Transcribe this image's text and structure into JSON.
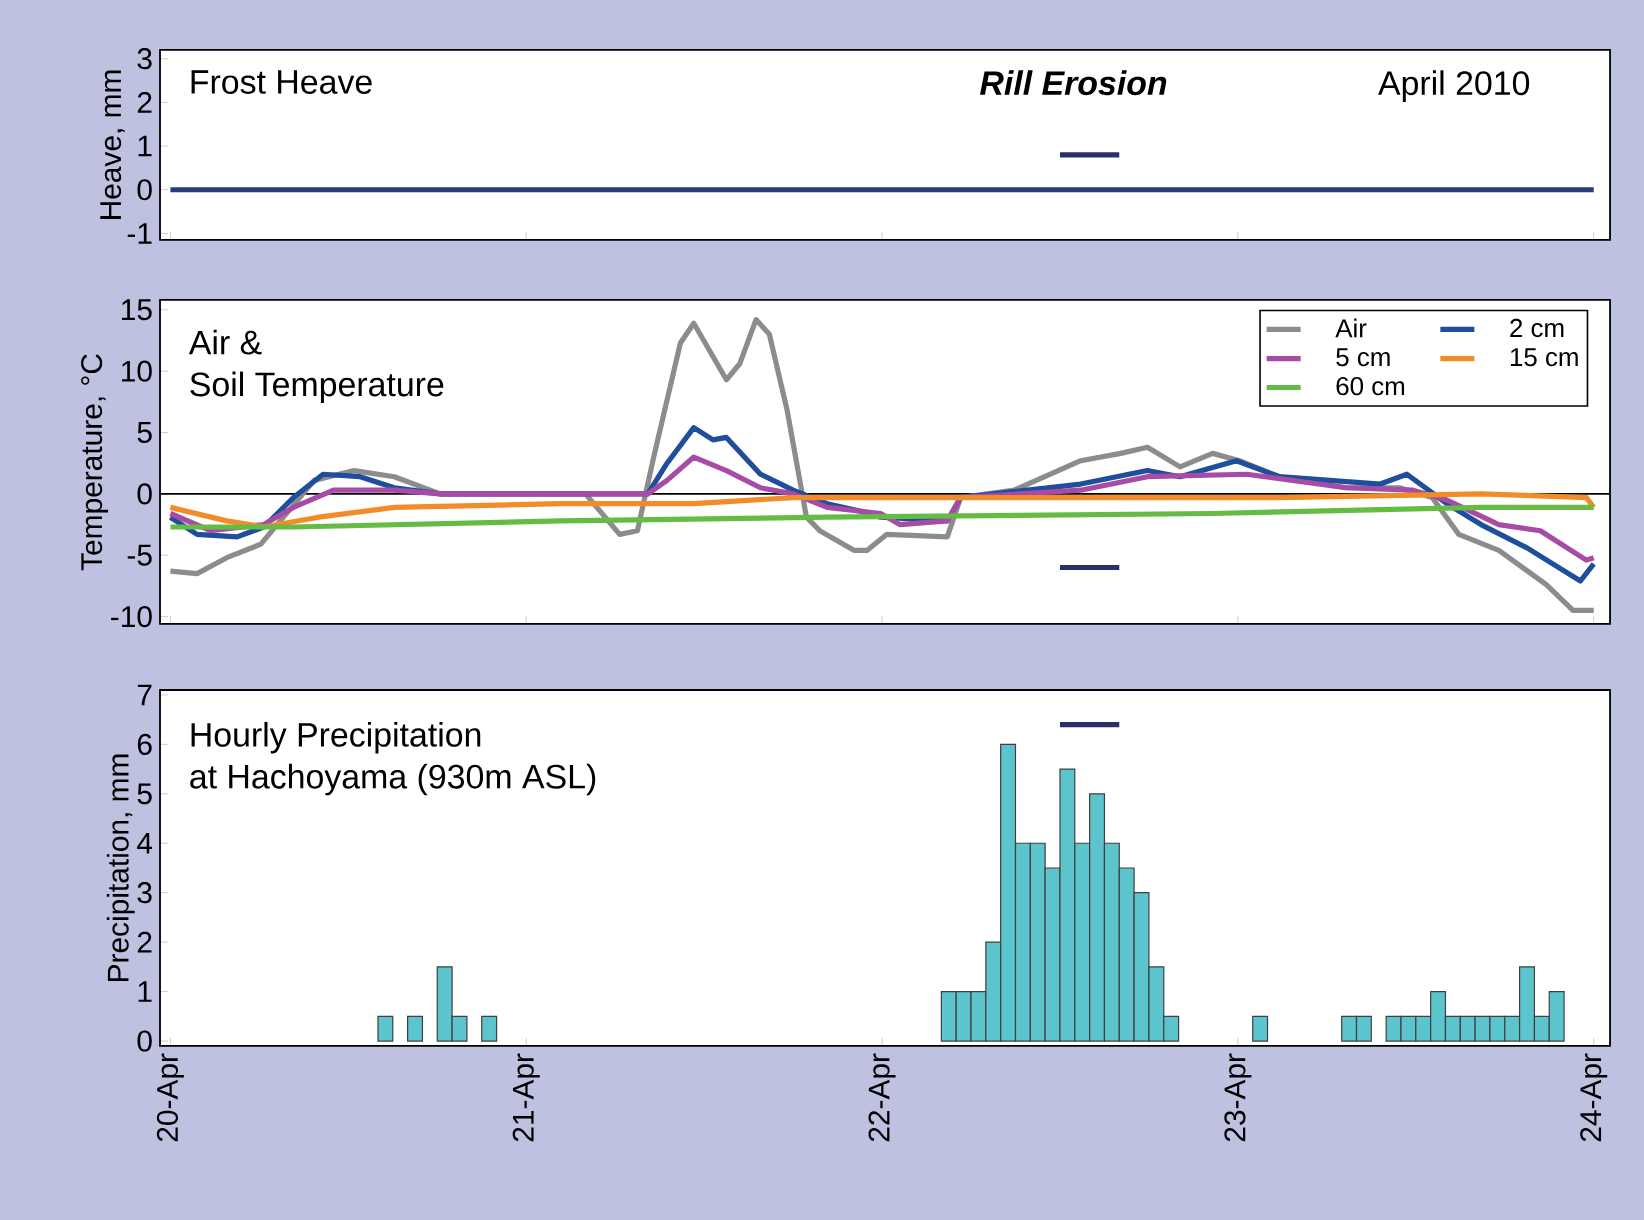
{
  "chart_data": [
    {
      "type": "line",
      "title": "Frost Heave",
      "ylabel": "Heave, mm",
      "xlim": [
        "2010-04-19T23:18",
        "2010-04-24T01:06"
      ],
      "ylim": [
        -1.15,
        3.2
      ],
      "yticks": [
        -1,
        0,
        1,
        2,
        3
      ],
      "xticks": [
        {
          "value": "2010-04-20",
          "label": null
        },
        {
          "value": "2010-04-21",
          "label": null
        },
        {
          "value": "2010-04-22",
          "label": null
        },
        {
          "value": "2010-04-23",
          "label": null
        },
        {
          "value": "2010-04-24",
          "label": null
        }
      ],
      "tick_labels": "y",
      "annotations": [
        "Rill Erosion",
        "April 2010"
      ],
      "series": [
        {
          "color": "#2b3a7a",
          "x": [
            "2010-04-20T00:00",
            "2010-04-21T00:00",
            "2010-04-22T00:00",
            "2010-04-23T00:00",
            "2010-04-24T00:00"
          ],
          "values": [
            0,
            0,
            0,
            0,
            0
          ]
        },
        {
          "color": "#2b2f6e",
          "x": [
            "2010-04-22T12:00",
            "2010-04-22T16:00"
          ],
          "values": [
            0.8,
            0.8
          ]
        }
      ]
    },
    {
      "type": "line",
      "title": "Air &",
      "subtitle": "Soil Temperature",
      "ylabel": "Temperature, °C",
      "xlim": [
        "2010-04-19T23:18",
        "2010-04-24T01:06"
      ],
      "ylim": [
        -10.6,
        15.8
      ],
      "yticks": [
        -10,
        -5,
        0,
        5,
        10,
        15
      ],
      "xticks": [
        {
          "value": "2010-04-20",
          "label": null
        },
        {
          "value": "2010-04-21",
          "label": null
        },
        {
          "value": "2010-04-22",
          "label": null
        },
        {
          "value": "2010-04-23",
          "label": null
        },
        {
          "value": "2010-04-24",
          "label": null
        }
      ],
      "tick_labels": "y",
      "legend": "top right",
      "ref_lines": [
        {
          "axis": "y",
          "value": 0,
          "color": "#000000"
        }
      ],
      "series": [
        {
          "name": "Air",
          "color": "#8c8c8c",
          "x": [
            "2010-04-20T00:00",
            "2010-04-20T01:48",
            "2010-04-20T03:48",
            "2010-04-20T06:06",
            "2010-04-20T07:12",
            "2010-04-20T09:42",
            "2010-04-20T12:24",
            "2010-04-20T15:06",
            "2010-04-20T18:12",
            "2010-04-21T04:00",
            "2010-04-21T06:18",
            "2010-04-21T07:30",
            "2010-04-21T08:36",
            "2010-04-21T10:24",
            "2010-04-21T11:18",
            "2010-04-21T13:30",
            "2010-04-21T14:24",
            "2010-04-21T15:30",
            "2010-04-21T16:24",
            "2010-04-21T17:36",
            "2010-04-21T18:54",
            "2010-04-21T19:48",
            "2010-04-21T22:06",
            "2010-04-21T23:00",
            "2010-04-22T00:18",
            "2010-04-22T04:24",
            "2010-04-22T05:18",
            "2010-04-22T08:54",
            "2010-04-22T13:24",
            "2010-04-22T16:06",
            "2010-04-22T17:54",
            "2010-04-22T20:06",
            "2010-04-22T22:18",
            "2010-04-23T00:06",
            "2010-04-23T02:48",
            "2010-04-23T07:18",
            "2010-04-23T10:54",
            "2010-04-23T13:06",
            "2010-04-23T14:54",
            "2010-04-23T17:36",
            "2010-04-23T20:48",
            "2010-04-23T22:36",
            "2010-04-24T00:00"
          ],
          "values": [
            -6.3,
            -6.5,
            -5.2,
            -4.1,
            -2.5,
            1.1,
            1.9,
            1.4,
            0,
            0,
            -3.3,
            -3,
            3,
            12.3,
            13.9,
            9.3,
            10.6,
            14.2,
            13,
            6.8,
            -1.9,
            -3,
            -4.6,
            -4.6,
            -3.3,
            -3.5,
            -0.3,
            0.3,
            2.7,
            3.3,
            3.8,
            2.2,
            3.3,
            2.7,
            1.4,
            0.5,
            0.5,
            -0.3,
            -3.3,
            -4.6,
            -7.4,
            -9.5,
            -9.5
          ]
        },
        {
          "name": "2 cm",
          "color": "#1f4e9c",
          "x": [
            "2010-04-20T00:00",
            "2010-04-20T01:48",
            "2010-04-20T04:30",
            "2010-04-20T06:18",
            "2010-04-20T08:18",
            "2010-04-20T10:18",
            "2010-04-20T12:48",
            "2010-04-20T15:06",
            "2010-04-20T18:12",
            "2010-04-21T08:12",
            "2010-04-21T09:30",
            "2010-04-21T11:18",
            "2010-04-21T12:36",
            "2010-04-21T13:30",
            "2010-04-21T15:48",
            "2010-04-21T18:00",
            "2010-04-21T20:18",
            "2010-04-21T22:30",
            "2010-04-21T23:54",
            "2010-04-22T04:24",
            "2010-04-22T05:18",
            "2010-04-22T13:24",
            "2010-04-22T17:54",
            "2010-04-22T20:06",
            "2010-04-22T23:54",
            "2010-04-23T02:48",
            "2010-04-23T09:36",
            "2010-04-23T11:24",
            "2010-04-23T14:06",
            "2010-04-23T16:24",
            "2010-04-23T19:30",
            "2010-04-23T23:06",
            "2010-04-24T00:00"
          ],
          "values": [
            -1.9,
            -3.3,
            -3.5,
            -2.7,
            -0.3,
            1.6,
            1.4,
            0.5,
            0,
            0,
            2.5,
            5.4,
            4.4,
            4.6,
            1.6,
            0.3,
            -0.8,
            -1.4,
            -1.9,
            -2.2,
            -0.3,
            0.8,
            1.9,
            1.4,
            2.7,
            1.4,
            0.8,
            1.6,
            -0.8,
            -2.5,
            -4.4,
            -7.1,
            -5.7
          ]
        },
        {
          "name": "5 cm",
          "color": "#a64ca6",
          "x": [
            "2010-04-20T00:00",
            "2010-04-20T02:42",
            "2010-04-20T06:18",
            "2010-04-20T08:18",
            "2010-04-20T11:00",
            "2010-04-20T15:06",
            "2010-04-20T18:12",
            "2010-04-21T08:12",
            "2010-04-21T09:30",
            "2010-04-21T11:18",
            "2010-04-21T13:30",
            "2010-04-21T15:48",
            "2010-04-21T18:00",
            "2010-04-21T20:18",
            "2010-04-21T23:54",
            "2010-04-22T01:12",
            "2010-04-22T04:24",
            "2010-04-22T05:18",
            "2010-04-22T13:24",
            "2010-04-22T17:54",
            "2010-04-23T00:36",
            "2010-04-23T07:18",
            "2010-04-23T11:48",
            "2010-04-23T14:06",
            "2010-04-23T17:36",
            "2010-04-23T20:24",
            "2010-04-23T23:30",
            "2010-04-24T00:00"
          ],
          "values": [
            -1.6,
            -3,
            -2.5,
            -1.1,
            0.3,
            0.3,
            0,
            0,
            1.1,
            3,
            1.9,
            0.5,
            0,
            -1.1,
            -1.6,
            -2.5,
            -2.2,
            -0.3,
            0.3,
            1.4,
            1.6,
            0.5,
            0.3,
            -0.5,
            -2.5,
            -3,
            -5.4,
            -5.2
          ]
        },
        {
          "name": "15 cm",
          "color": "#f28c28",
          "x": [
            "2010-04-20T00:00",
            "2010-04-20T03:48",
            "2010-04-20T06:18",
            "2010-04-20T10:00",
            "2010-04-20T15:06",
            "2010-04-21T02:18",
            "2010-04-21T11:18",
            "2010-04-21T18:00",
            "2010-04-22T02:36",
            "2010-04-23T02:48",
            "2010-04-23T16:24",
            "2010-04-23T23:30",
            "2010-04-24T00:00"
          ],
          "values": [
            -1.1,
            -2.2,
            -2.7,
            -1.9,
            -1.1,
            -0.8,
            -0.8,
            -0.3,
            -0.3,
            -0.3,
            0,
            -0.3,
            -1.1
          ]
        },
        {
          "name": "60 cm",
          "color": "#66bb44",
          "x": [
            "2010-04-20T00:00",
            "2010-04-20T08:18",
            "2010-04-21T02:18",
            "2010-04-21T20:18",
            "2010-04-22T22:18",
            "2010-04-23T16:24",
            "2010-04-24T00:00"
          ],
          "values": [
            -2.7,
            -2.7,
            -2.2,
            -1.9,
            -1.6,
            -1.1,
            -1.1
          ]
        },
        {
          "color": "#2b2f6e",
          "x": [
            "2010-04-22T12:00",
            "2010-04-22T16:00"
          ],
          "values": [
            -6,
            -6
          ]
        }
      ]
    },
    {
      "type": "bar",
      "title": "Hourly Precipitation",
      "subtitle": "at Hachoyama (930m ASL)",
      "ylabel": "Precipitation, mm",
      "xlim": [
        "2010-04-19T23:18",
        "2010-04-24T01:06"
      ],
      "ylim": [
        -0.1,
        7.1
      ],
      "yticks": [
        0,
        1,
        2,
        3,
        4,
        5,
        6,
        7
      ],
      "xticks": [
        {
          "value": "2010-04-20",
          "label": "20-Apr"
        },
        {
          "value": "2010-04-21",
          "label": "21-Apr"
        },
        {
          "value": "2010-04-22",
          "label": "22-Apr"
        },
        {
          "value": "2010-04-23",
          "label": "23-Apr"
        },
        {
          "value": "2010-04-24",
          "label": "24-Apr"
        }
      ],
      "series": [
        {
          "color": "#5bc4cc",
          "x": [
            "2010-04-20T14:30",
            "2010-04-20T16:30",
            "2010-04-20T18:30",
            "2010-04-20T19:30",
            "2010-04-20T21:30",
            "2010-04-22T04:30",
            "2010-04-22T05:30",
            "2010-04-22T06:30",
            "2010-04-22T07:30",
            "2010-04-22T08:30",
            "2010-04-22T09:30",
            "2010-04-22T10:30",
            "2010-04-22T11:30",
            "2010-04-22T12:30",
            "2010-04-22T13:30",
            "2010-04-22T14:30",
            "2010-04-22T15:30",
            "2010-04-22T16:30",
            "2010-04-22T17:30",
            "2010-04-22T18:30",
            "2010-04-22T19:30",
            "2010-04-23T01:30",
            "2010-04-23T07:30",
            "2010-04-23T08:30",
            "2010-04-23T10:30",
            "2010-04-23T11:30",
            "2010-04-23T12:30",
            "2010-04-23T13:30",
            "2010-04-23T14:30",
            "2010-04-23T15:30",
            "2010-04-23T16:30",
            "2010-04-23T17:30",
            "2010-04-23T18:30",
            "2010-04-23T19:30",
            "2010-04-23T20:30",
            "2010-04-23T21:30"
          ],
          "values": [
            0.5,
            0.5,
            1.5,
            0.5,
            0.5,
            1,
            1,
            1,
            2,
            6,
            4,
            4,
            3.5,
            5.5,
            4,
            5,
            4,
            3.5,
            3,
            1.5,
            0.5,
            0.5,
            0.5,
            0.5,
            0.5,
            0.5,
            0.5,
            1,
            0.5,
            0.5,
            0.5,
            0.5,
            0.5,
            1.5,
            0.5,
            1
          ]
        },
        {
          "type": "line",
          "color": "#2b2f6e",
          "x": [
            "2010-04-22T12:00",
            "2010-04-22T16:00"
          ],
          "values": [
            6.4,
            6.4
          ]
        }
      ]
    }
  ]
}
